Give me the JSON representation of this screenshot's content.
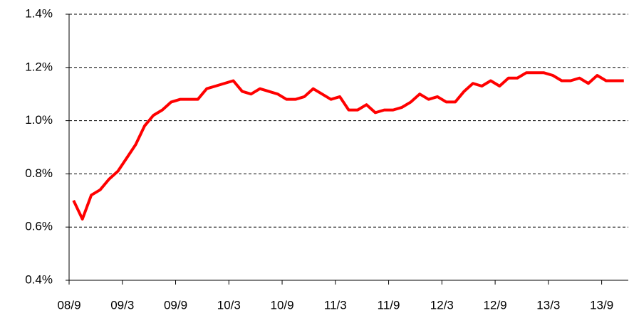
{
  "chart_data": {
    "type": "line",
    "categories": [
      "08/9",
      null,
      null,
      null,
      null,
      null,
      "09/3",
      null,
      null,
      null,
      null,
      null,
      "09/9",
      null,
      null,
      null,
      null,
      null,
      "10/3",
      null,
      null,
      null,
      null,
      null,
      "10/9",
      null,
      null,
      null,
      null,
      null,
      "11/3",
      null,
      null,
      null,
      null,
      null,
      "11/9",
      null,
      null,
      null,
      null,
      null,
      "12/3",
      null,
      null,
      null,
      null,
      null,
      "12/9",
      null,
      null,
      null,
      null,
      null,
      "13/3",
      null,
      null,
      null,
      null,
      null,
      "13/9",
      null,
      null
    ],
    "values": [
      0.7,
      0.63,
      0.72,
      0.74,
      0.78,
      0.81,
      0.86,
      0.91,
      0.98,
      1.02,
      1.04,
      1.07,
      1.08,
      1.08,
      1.08,
      1.12,
      1.13,
      1.14,
      1.15,
      1.11,
      1.1,
      1.12,
      1.11,
      1.1,
      1.08,
      1.08,
      1.09,
      1.12,
      1.1,
      1.08,
      1.09,
      1.04,
      1.04,
      1.06,
      1.03,
      1.04,
      1.04,
      1.05,
      1.07,
      1.1,
      1.08,
      1.09,
      1.07,
      1.07,
      1.11,
      1.14,
      1.13,
      1.15,
      1.13,
      1.16,
      1.16,
      1.18,
      1.18,
      1.18,
      1.17,
      1.15,
      1.15,
      1.16,
      1.14,
      1.17,
      1.15,
      1.15,
      1.15
    ],
    "color": "#ff0000",
    "ylim": [
      0.4,
      1.4
    ],
    "yticks": [
      {
        "value": 0.4,
        "label": "0.4%"
      },
      {
        "value": 0.6,
        "label": "0.6%"
      },
      {
        "value": 0.8,
        "label": "0.8%"
      },
      {
        "value": 1.0,
        "label": "1.0%"
      },
      {
        "value": 1.2,
        "label": "1.2%"
      },
      {
        "value": 1.4,
        "label": "1.4%"
      }
    ],
    "grid": true
  }
}
